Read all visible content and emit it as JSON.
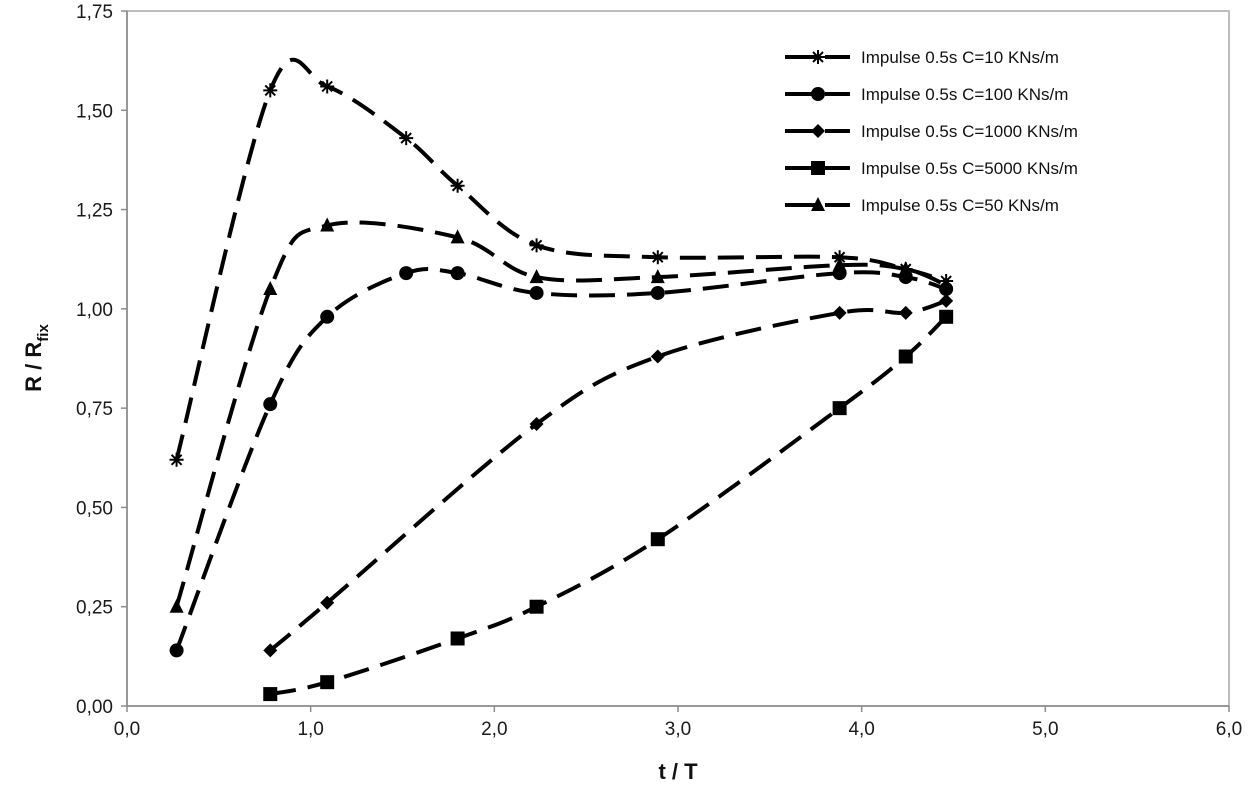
{
  "chart_data": {
    "type": "line",
    "xlabel": "t / T",
    "ylabel": "R / R",
    "ylabel_subscript": "fix",
    "xlim": [
      0,
      6
    ],
    "ylim": [
      0,
      1.75
    ],
    "x_ticks": [
      "0,0",
      "1,0",
      "2,0",
      "3,0",
      "4,0",
      "5,0",
      "6,0"
    ],
    "y_ticks": [
      "0,00",
      "0,25",
      "0,50",
      "0,75",
      "1,00",
      "1,25",
      "1,50",
      "1,75"
    ],
    "grid": false,
    "legend_position": "top-right",
    "colors": {
      "line": "#000000",
      "plot_border": "#bdbdbd",
      "axis": "#8c8c8c"
    },
    "series": [
      {
        "name": "Impulse 0.5s C=10 KNs/m",
        "marker": "star",
        "x": [
          0.27,
          0.78,
          1.09,
          1.52,
          1.8,
          2.23,
          2.89,
          3.88,
          4.24,
          4.46
        ],
        "y": [
          0.62,
          1.55,
          1.56,
          1.43,
          1.31,
          1.16,
          1.13,
          1.13,
          1.1,
          1.07
        ]
      },
      {
        "name": "Impulse 0.5s C=100  KNs/m",
        "marker": "circle",
        "x": [
          0.27,
          0.78,
          1.09,
          1.52,
          1.8,
          2.23,
          2.89,
          3.88,
          4.24,
          4.46
        ],
        "y": [
          0.14,
          0.76,
          0.98,
          1.09,
          1.09,
          1.04,
          1.04,
          1.09,
          1.08,
          1.05
        ]
      },
      {
        "name": "Impulse 0.5s C=1000 KNs/m",
        "marker": "diamond",
        "x": [
          0.78,
          1.09,
          2.23,
          2.89,
          3.88,
          4.24,
          4.46
        ],
        "y": [
          0.14,
          0.26,
          0.71,
          0.88,
          0.99,
          0.99,
          1.02
        ]
      },
      {
        "name": "Impulse 0.5s C=5000 KNs/m",
        "marker": "square",
        "x": [
          0.78,
          1.09,
          1.8,
          2.23,
          2.89,
          3.88,
          4.24,
          4.46
        ],
        "y": [
          0.03,
          0.06,
          0.17,
          0.25,
          0.42,
          0.75,
          0.88,
          0.98
        ]
      },
      {
        "name": "Impulse 0.5s C=50 KNs/m",
        "marker": "triangle",
        "x": [
          0.27,
          0.78,
          1.09,
          1.8,
          2.23,
          2.89,
          3.88,
          4.24,
          4.46
        ],
        "y": [
          0.25,
          1.05,
          1.21,
          1.18,
          1.08,
          1.08,
          1.11,
          1.1,
          1.06
        ]
      }
    ]
  }
}
